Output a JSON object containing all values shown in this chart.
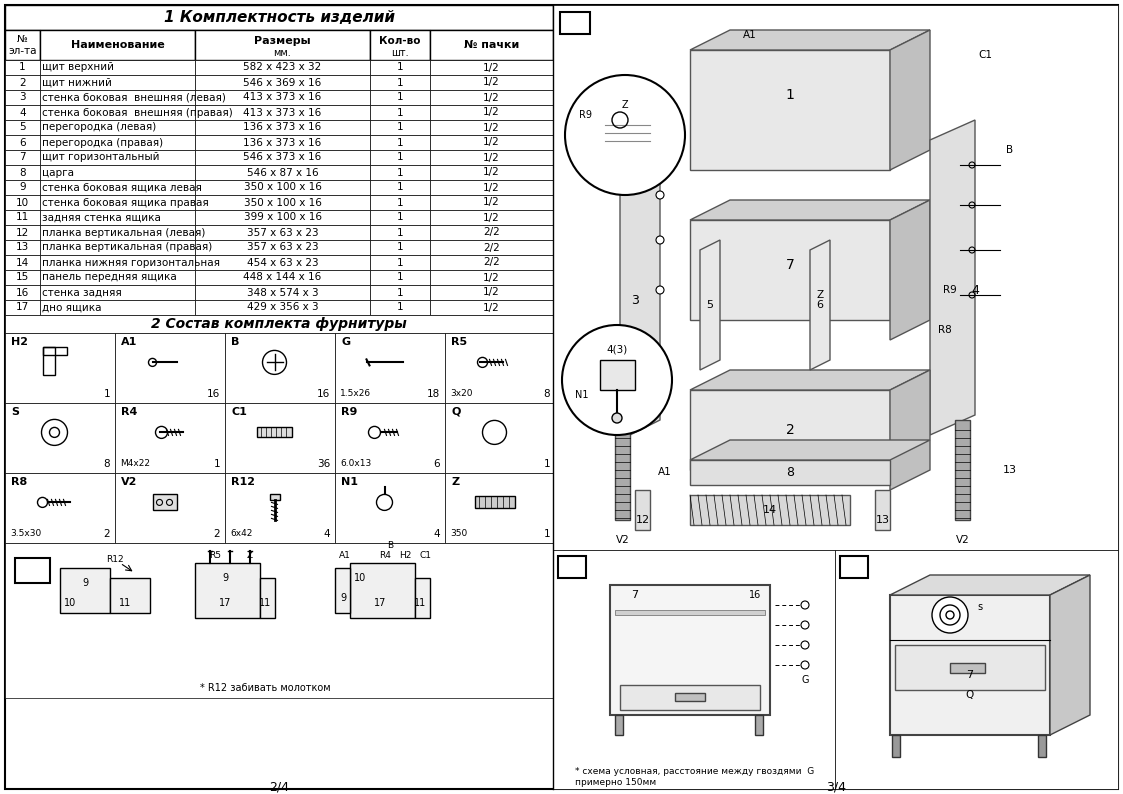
{
  "title_section1": "1 Комплектность изделий",
  "title_section2": "2 Состав комплекта фурнитуры",
  "col_headers": [
    "№\nэл-та",
    "Наименование",
    "Размеры\nмм.",
    "Кол-во\nшт.",
    "№ пачки"
  ],
  "rows": [
    [
      "1",
      "щит верхний",
      "582 х 423 х 32",
      "1",
      "1/2"
    ],
    [
      "2",
      "щит нижний",
      "546 х 369 х 16",
      "1",
      "1/2"
    ],
    [
      "3",
      "стенка боковая  внешняя (левая)",
      "413 х 373 х 16",
      "1",
      "1/2"
    ],
    [
      "4",
      "стенка боковая  внешняя (правая)",
      "413 х 373 х 16",
      "1",
      "1/2"
    ],
    [
      "5",
      "перегородка (левая)",
      "136 х 373 х 16",
      "1",
      "1/2"
    ],
    [
      "6",
      "перегородка (правая)",
      "136 х 373 х 16",
      "1",
      "1/2"
    ],
    [
      "7",
      "щит горизонтальный",
      "546 х 373 х 16",
      "1",
      "1/2"
    ],
    [
      "8",
      "царга",
      "546 х 87 х 16",
      "1",
      "1/2"
    ],
    [
      "9",
      "стенка боковая ящика левая",
      "350 х 100 х 16",
      "1",
      "1/2"
    ],
    [
      "10",
      "стенка боковая ящика правая",
      "350 х 100 х 16",
      "1",
      "1/2"
    ],
    [
      "11",
      "задняя стенка ящика",
      "399 х 100 х 16",
      "1",
      "1/2"
    ],
    [
      "12",
      "планка вертикальная (левая)",
      "357 х 63 х 23",
      "1",
      "2/2"
    ],
    [
      "13",
      "планка вертикальная (правая)",
      "357 х 63 х 23",
      "1",
      "2/2"
    ],
    [
      "14",
      "планка нижняя горизонтальная",
      "454 х 63 х 23",
      "1",
      "2/2"
    ],
    [
      "15",
      "панель передняя ящика",
      "448 х 144 х 16",
      "1",
      "1/2"
    ],
    [
      "16",
      "стенка задняя",
      "348 х 574 х 3",
      "1",
      "1/2"
    ],
    [
      "17",
      "дно ящика",
      "429 х 356 х 3",
      "1",
      "1/2"
    ]
  ],
  "hardware": [
    {
      "code": "H2",
      "qty": "1",
      "size": ""
    },
    {
      "code": "A1",
      "qty": "16",
      "size": ""
    },
    {
      "code": "B",
      "qty": "16",
      "size": ""
    },
    {
      "code": "G",
      "qty": "18",
      "size": "1.5x26"
    },
    {
      "code": "R5",
      "qty": "8",
      "size": "3x20"
    },
    {
      "code": "S",
      "qty": "8",
      "size": ""
    },
    {
      "code": "R4",
      "qty": "1",
      "size": "М4х22"
    },
    {
      "code": "C1",
      "qty": "36",
      "size": ""
    },
    {
      "code": "R9",
      "qty": "6",
      "size": "6.0x13"
    },
    {
      "code": "Q",
      "qty": "1",
      "size": ""
    },
    {
      "code": "R8",
      "qty": "2",
      "size": "3.5x30"
    },
    {
      "code": "V2",
      "qty": "2",
      "size": ""
    },
    {
      "code": "R12",
      "qty": "4",
      "size": "6x42"
    },
    {
      "code": "N1",
      "qty": "4",
      "size": ""
    },
    {
      "code": "Z",
      "qty": "1",
      "size": "350"
    }
  ],
  "page_left": "2/4",
  "page_right": "3/4",
  "note_ii": "* R12 забивать молотком",
  "note_iii": "* схема условная, расстояние между гвоздями  G\nпримерно 150мм",
  "bg_color": "#ffffff",
  "border_color": "#000000",
  "text_color": "#000000",
  "font_size_title": 11,
  "font_size_table": 8,
  "font_size_small": 7
}
